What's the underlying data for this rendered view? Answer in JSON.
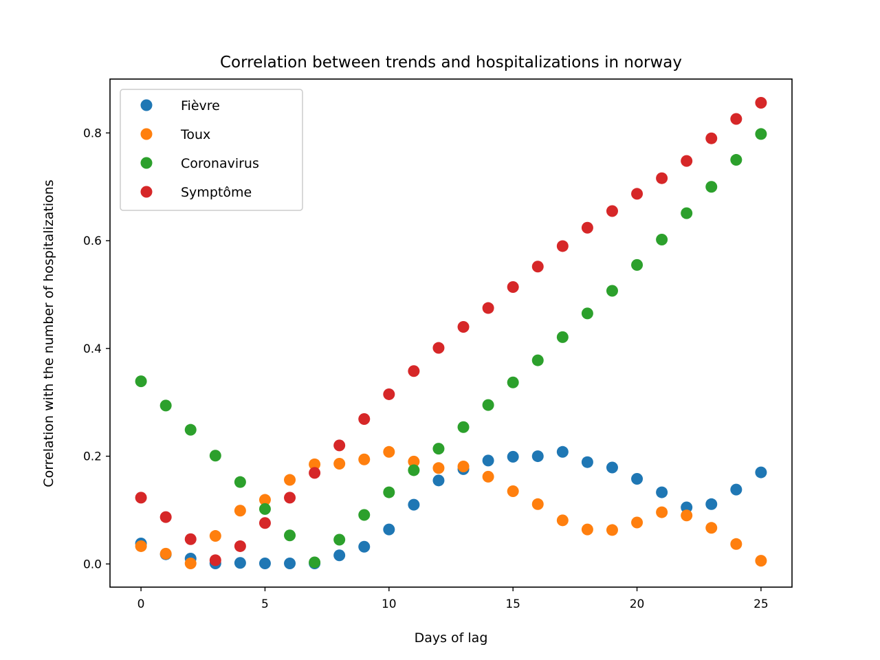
{
  "chart_data": {
    "type": "scatter",
    "title": "Correlation between trends and hospitalizations in norway",
    "xlabel": "Days of lag",
    "ylabel": "Correlation with the number of hospitalizations",
    "xlim": [
      -1.25,
      26.25
    ],
    "ylim": [
      -0.043,
      0.9
    ],
    "xticks": [
      0,
      5,
      10,
      15,
      20,
      25
    ],
    "xtick_labels": [
      "0",
      "5",
      "10",
      "15",
      "20",
      "25"
    ],
    "yticks": [
      0.0,
      0.2,
      0.4,
      0.6,
      0.8
    ],
    "ytick_labels": [
      "0.0",
      "0.2",
      "0.4",
      "0.6",
      "0.8"
    ],
    "grid": false,
    "legend_position": "top-left",
    "x": [
      0,
      1,
      2,
      3,
      4,
      5,
      6,
      7,
      8,
      9,
      10,
      11,
      12,
      13,
      14,
      15,
      16,
      17,
      18,
      19,
      20,
      21,
      22,
      23,
      24,
      25
    ],
    "series": [
      {
        "name": "Fièvre",
        "color": "#1f77b4",
        "values": [
          0.038,
          0.018,
          0.01,
          0.001,
          0.002,
          0.001,
          0.001,
          0.001,
          0.016,
          0.032,
          0.064,
          0.11,
          0.155,
          0.176,
          0.192,
          0.199,
          0.2,
          0.208,
          0.189,
          0.179,
          0.158,
          0.133,
          0.105,
          0.111,
          0.138,
          0.17
        ]
      },
      {
        "name": "Toux",
        "color": "#ff7f0e",
        "values": [
          0.033,
          0.019,
          0.001,
          0.052,
          0.099,
          0.119,
          0.156,
          0.185,
          0.186,
          0.194,
          0.208,
          0.19,
          0.178,
          0.181,
          0.162,
          0.135,
          0.111,
          0.081,
          0.064,
          0.063,
          0.077,
          0.096,
          0.09,
          0.067,
          0.037,
          0.006
        ]
      },
      {
        "name": "Coronavirus",
        "color": "#2ca02c",
        "values": [
          0.339,
          0.294,
          0.249,
          0.201,
          0.152,
          0.102,
          0.053,
          0.003,
          0.045,
          0.091,
          0.133,
          0.174,
          0.214,
          0.254,
          0.295,
          0.337,
          0.378,
          0.421,
          0.465,
          0.507,
          0.555,
          0.602,
          0.651,
          0.7,
          0.75,
          0.798
        ]
      },
      {
        "name": "Symptôme",
        "color": "#d62728",
        "values": [
          0.123,
          0.087,
          0.046,
          0.007,
          0.033,
          0.076,
          0.123,
          0.169,
          0.22,
          0.269,
          0.315,
          0.358,
          0.401,
          0.44,
          0.475,
          0.514,
          0.552,
          0.59,
          0.624,
          0.655,
          0.687,
          0.716,
          0.748,
          0.79,
          0.826,
          0.856
        ]
      }
    ]
  }
}
